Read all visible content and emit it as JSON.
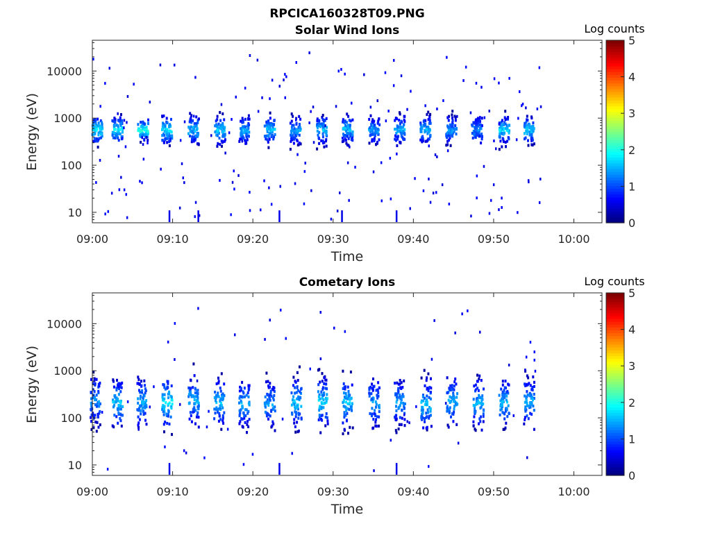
{
  "figure": {
    "title": "RPCICA160328T09.PNG"
  },
  "colorbar": {
    "label": "Log counts",
    "ticks": [
      0,
      1,
      2,
      3,
      4,
      5
    ],
    "range": [
      0,
      5
    ],
    "colormap": "jet"
  },
  "colors": {
    "axis": "#262626",
    "background": "#ffffff"
  },
  "chart_data": [
    {
      "type": "heatmap",
      "title": "Solar Wind Ions",
      "xlabel": "Time",
      "ylabel": "Energy (eV)",
      "x_ticks": [
        "09:00",
        "09:10",
        "09:20",
        "09:30",
        "09:40",
        "09:50",
        "10:00"
      ],
      "xlim_minutes": [
        0,
        63.5
      ],
      "y_ticks": [
        10,
        100,
        1000,
        10000
      ],
      "ylim": [
        6,
        45000
      ],
      "y_scale": "log",
      "grid": false,
      "z_label": "Log counts",
      "z_range": [
        0,
        5
      ],
      "bursts": [
        {
          "t": 0.5,
          "e_center": 600,
          "e_spread": 0.2,
          "peak": 2.0
        },
        {
          "t": 3.0,
          "e_center": 600,
          "e_spread": 0.2,
          "peak": 2.0
        },
        {
          "t": 6.2,
          "e_center": 600,
          "e_spread": 0.15,
          "peak": 2.3
        },
        {
          "t": 9.2,
          "e_center": 600,
          "e_spread": 0.2,
          "peak": 2.0
        },
        {
          "t": 12.5,
          "e_center": 600,
          "e_spread": 0.2,
          "peak": 1.8
        },
        {
          "t": 15.8,
          "e_center": 600,
          "e_spread": 0.2,
          "peak": 1.8
        },
        {
          "t": 18.8,
          "e_center": 580,
          "e_spread": 0.2,
          "peak": 1.7
        },
        {
          "t": 22.0,
          "e_center": 600,
          "e_spread": 0.2,
          "peak": 1.8
        },
        {
          "t": 25.2,
          "e_center": 580,
          "e_spread": 0.2,
          "peak": 1.6
        },
        {
          "t": 28.5,
          "e_center": 600,
          "e_spread": 0.2,
          "peak": 1.8
        },
        {
          "t": 31.7,
          "e_center": 620,
          "e_spread": 0.2,
          "peak": 1.8
        },
        {
          "t": 35.0,
          "e_center": 600,
          "e_spread": 0.2,
          "peak": 1.6
        },
        {
          "t": 38.2,
          "e_center": 600,
          "e_spread": 0.2,
          "peak": 1.7
        },
        {
          "t": 41.4,
          "e_center": 600,
          "e_spread": 0.2,
          "peak": 1.7
        },
        {
          "t": 44.6,
          "e_center": 600,
          "e_spread": 0.2,
          "peak": 1.6
        },
        {
          "t": 47.8,
          "e_center": 600,
          "e_spread": 0.2,
          "peak": 1.5
        },
        {
          "t": 51.2,
          "e_center": 600,
          "e_spread": 0.2,
          "peak": 1.9
        },
        {
          "t": 54.3,
          "e_center": 600,
          "e_spread": 0.2,
          "peak": 1.9
        }
      ],
      "data_end_minute": 56.0
    },
    {
      "type": "heatmap",
      "title": "Cometary Ions",
      "xlabel": "Time",
      "ylabel": "Energy (eV)",
      "x_ticks": [
        "09:00",
        "09:10",
        "09:20",
        "09:30",
        "09:40",
        "09:50",
        "10:00"
      ],
      "xlim_minutes": [
        0,
        63.5
      ],
      "y_ticks": [
        10,
        100,
        1000,
        10000
      ],
      "ylim": [
        6,
        45000
      ],
      "y_scale": "log",
      "grid": false,
      "z_label": "Log counts",
      "z_range": [
        0,
        5
      ],
      "bursts": [
        {
          "t": 0.3,
          "e_center": 250,
          "e_spread": 0.35,
          "peak": 1.6
        },
        {
          "t": 3.0,
          "e_center": 220,
          "e_spread": 0.35,
          "peak": 1.8
        },
        {
          "t": 6.0,
          "e_center": 230,
          "e_spread": 0.35,
          "peak": 1.7
        },
        {
          "t": 9.2,
          "e_center": 230,
          "e_spread": 0.35,
          "peak": 2.0
        },
        {
          "t": 12.5,
          "e_center": 250,
          "e_spread": 0.35,
          "peak": 1.7
        },
        {
          "t": 15.7,
          "e_center": 220,
          "e_spread": 0.35,
          "peak": 1.8
        },
        {
          "t": 18.8,
          "e_center": 210,
          "e_spread": 0.35,
          "peak": 1.7
        },
        {
          "t": 22.0,
          "e_center": 210,
          "e_spread": 0.35,
          "peak": 1.6
        },
        {
          "t": 25.3,
          "e_center": 220,
          "e_spread": 0.35,
          "peak": 1.8
        },
        {
          "t": 28.6,
          "e_center": 230,
          "e_spread": 0.35,
          "peak": 1.9
        },
        {
          "t": 31.7,
          "e_center": 230,
          "e_spread": 0.35,
          "peak": 1.8
        },
        {
          "t": 35.0,
          "e_center": 220,
          "e_spread": 0.35,
          "peak": 1.6
        },
        {
          "t": 38.2,
          "e_center": 230,
          "e_spread": 0.35,
          "peak": 1.6
        },
        {
          "t": 41.5,
          "e_center": 200,
          "e_spread": 0.35,
          "peak": 1.8
        },
        {
          "t": 44.7,
          "e_center": 230,
          "e_spread": 0.35,
          "peak": 1.7
        },
        {
          "t": 48.0,
          "e_center": 220,
          "e_spread": 0.35,
          "peak": 1.7
        },
        {
          "t": 51.2,
          "e_center": 230,
          "e_spread": 0.35,
          "peak": 1.7
        },
        {
          "t": 54.3,
          "e_center": 230,
          "e_spread": 0.35,
          "peak": 1.7
        }
      ],
      "data_end_minute": 56.0
    }
  ]
}
